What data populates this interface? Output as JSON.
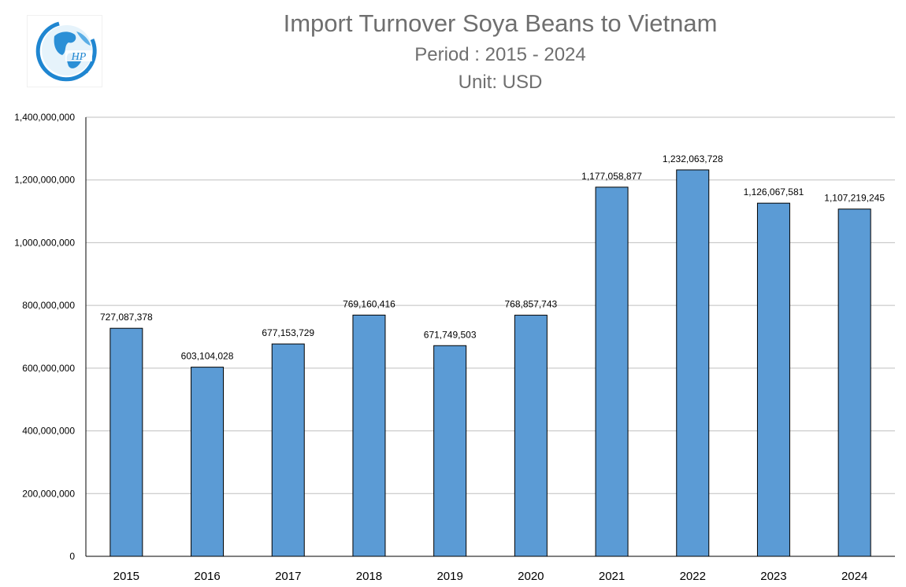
{
  "logo": {
    "icon": "globe-logo-icon",
    "text": "HP"
  },
  "chart_data": {
    "type": "bar",
    "title": "Import Turnover Soya Beans to Vietnam",
    "subtitle": "Period : 2015 - 2024",
    "unit": "Unit: USD",
    "xlabel": "",
    "ylabel": "",
    "categories": [
      "2015",
      "2016",
      "2017",
      "2018",
      "2019",
      "2020",
      "2021",
      "2022",
      "2023",
      "2024"
    ],
    "values": [
      727087378,
      603104028,
      677153729,
      769160416,
      671749503,
      768857743,
      1177058877,
      1232063728,
      1126067581,
      1107219245
    ],
    "value_labels": [
      "727,087,378",
      "603,104,028",
      "677,153,729",
      "769,160,416",
      "671,749,503",
      "768,857,743",
      "1,177,058,877",
      "1,232,063,728",
      "1,126,067,581",
      "1,107,219,245"
    ],
    "ylim": [
      0,
      1400000000
    ],
    "yticks": [
      0,
      200000000,
      400000000,
      600000000,
      800000000,
      1000000000,
      1200000000,
      1400000000
    ],
    "ytick_labels": [
      "0",
      "200,000,000",
      "400,000,000",
      "600,000,000",
      "800,000,000",
      "1,000,000,000",
      "1,200,000,000",
      "1,400,000,000"
    ],
    "grid": true,
    "legend": "none",
    "bar_color": "#5b9bd5",
    "bar_stroke": "#000000"
  }
}
